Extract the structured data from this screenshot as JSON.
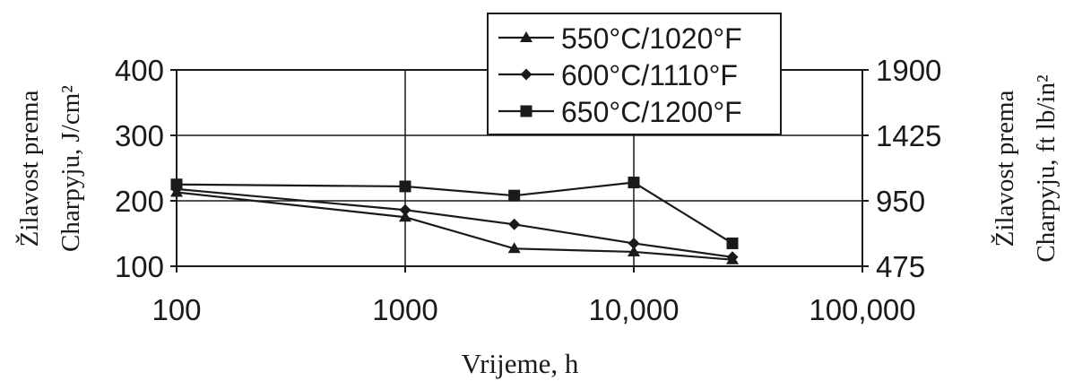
{
  "chart_data": {
    "type": "line",
    "title": "",
    "x_scale": "log",
    "xlim": [
      100,
      100000
    ],
    "x_tick_labels": [
      "100",
      "1000",
      "10,000",
      "100,000"
    ],
    "xlabel": "Vrijeme, h",
    "ylabel_left": [
      "Žilavost prema",
      "Charpyju, J/cm²"
    ],
    "ylabel_right": [
      "Žilavost prema",
      "Charpyju, ft lb/in²"
    ],
    "ylim": [
      100,
      400
    ],
    "y_tick_labels_left": [
      "400",
      "300",
      "200",
      "100"
    ],
    "y2lim": [
      475,
      1900
    ],
    "y_tick_labels_right": [
      "1900",
      "1425",
      "950",
      "475"
    ],
    "grid": true,
    "legend_position": "top-center",
    "series": [
      {
        "name": "550°C/1020°F",
        "marker": "triangle",
        "x": [
          100,
          1000,
          3000,
          10000,
          27000
        ],
        "y": [
          213,
          175,
          127,
          122,
          110
        ]
      },
      {
        "name": "600°C/1110°F",
        "marker": "diamond",
        "x": [
          100,
          1000,
          3000,
          10000,
          27000
        ],
        "y": [
          218,
          186,
          164,
          135,
          114
        ]
      },
      {
        "name": "650°C/1200°F",
        "marker": "square",
        "x": [
          100,
          1000,
          3000,
          10000,
          27000
        ],
        "y": [
          225,
          222,
          208,
          228,
          135
        ]
      }
    ]
  }
}
